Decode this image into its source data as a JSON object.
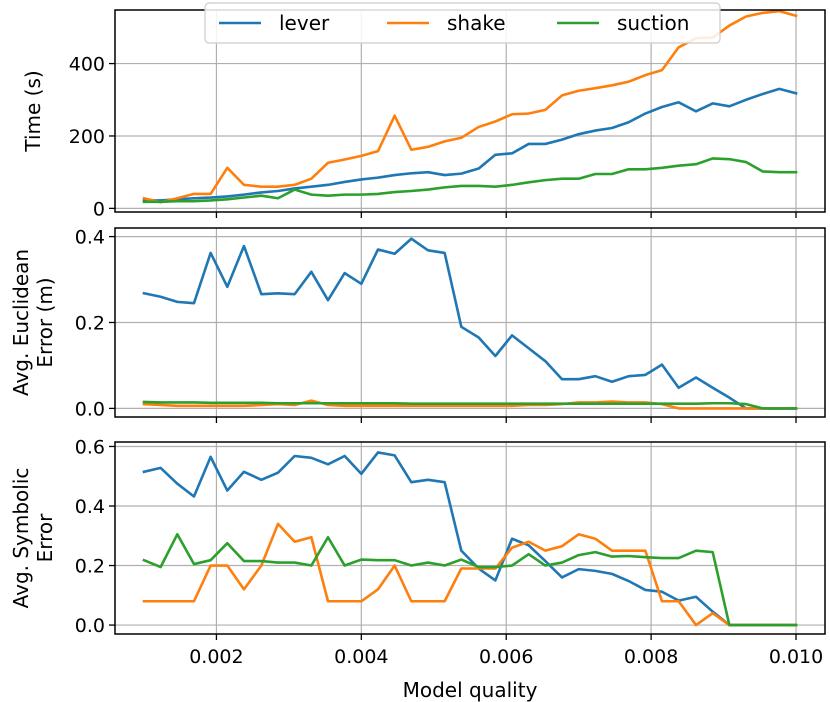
{
  "chart_data": {
    "type": "line",
    "xlabel": "Model quality",
    "x": [
      0.001,
      0.00123,
      0.00146,
      0.00169,
      0.00192,
      0.00215,
      0.00238,
      0.00262,
      0.00285,
      0.00308,
      0.00331,
      0.00354,
      0.00377,
      0.004,
      0.00423,
      0.00446,
      0.00469,
      0.00492,
      0.00515,
      0.00538,
      0.00562,
      0.00585,
      0.00608,
      0.00631,
      0.00654,
      0.00677,
      0.007,
      0.00723,
      0.00746,
      0.00769,
      0.00792,
      0.00815,
      0.00838,
      0.00862,
      0.00885,
      0.00908,
      0.00931,
      0.00954,
      0.00977,
      0.01
    ],
    "xlim": [
      0.0006,
      0.0104
    ],
    "xticks": [
      0.002,
      0.004,
      0.006,
      0.008,
      0.01
    ],
    "xtick_labels": [
      "0.002",
      "0.004",
      "0.006",
      "0.008",
      "0.010"
    ],
    "legend": {
      "placement": "upper center",
      "entries": [
        {
          "label": "lever",
          "color": "#1f77b4"
        },
        {
          "label": "shake",
          "color": "#ff7f0e"
        },
        {
          "label": "suction",
          "color": "#2ca02c"
        }
      ]
    },
    "grid": true,
    "subplots": [
      {
        "ylabel": "Time (s)",
        "ylim": [
          -10,
          548
        ],
        "yticks": [
          0,
          200,
          400
        ],
        "ytick_labels": [
          "0",
          "200",
          "400"
        ],
        "series": [
          {
            "name": "lever",
            "color": "#1f77b4",
            "values": [
              22,
              22,
              25,
              28,
              30,
              33,
              38,
              44,
              48,
              55,
              60,
              65,
              73,
              80,
              85,
              92,
              97,
              100,
              92,
              96,
              110,
              148,
              152,
              178,
              178,
              190,
              205,
              215,
              222,
              238,
              262,
              280,
              293,
              268,
              290,
              282,
              300,
              316,
              330,
              318
            ]
          },
          {
            "name": "shake",
            "color": "#ff7f0e",
            "values": [
              28,
              17,
              28,
              40,
              40,
              112,
              65,
              60,
              60,
              65,
              82,
              126,
              135,
              145,
              158,
              256,
              162,
              170,
              185,
              195,
              225,
              240,
              260,
              262,
              272,
              312,
              325,
              332,
              340,
              350,
              368,
              382,
              445,
              470,
              472,
              505,
              530,
              540,
              545,
              532
            ]
          },
          {
            "name": "suction",
            "color": "#2ca02c",
            "values": [
              18,
              18,
              20,
              20,
              22,
              25,
              30,
              35,
              28,
              52,
              38,
              35,
              38,
              38,
              40,
              45,
              48,
              52,
              58,
              62,
              62,
              60,
              65,
              72,
              78,
              82,
              82,
              95,
              95,
              108,
              108,
              112,
              118,
              122,
              138,
              136,
              128,
              102,
              100,
              100
            ]
          }
        ]
      },
      {
        "ylabel": "Avg. Euclidean\nError (m)",
        "ylim": [
          -0.02,
          0.42
        ],
        "yticks": [
          0.0,
          0.2,
          0.4
        ],
        "ytick_labels": [
          "0.0",
          "0.2",
          "0.4"
        ],
        "series": [
          {
            "name": "lever",
            "color": "#1f77b4",
            "values": [
              0.268,
              0.26,
              0.248,
              0.245,
              0.362,
              0.283,
              0.378,
              0.266,
              0.268,
              0.266,
              0.318,
              0.252,
              0.315,
              0.29,
              0.37,
              0.36,
              0.395,
              0.368,
              0.362,
              0.19,
              0.165,
              0.122,
              0.17,
              0.14,
              0.11,
              0.068,
              0.068,
              0.075,
              0.062,
              0.075,
              0.078,
              0.102,
              0.048,
              0.072,
              0.048,
              0.025,
              0.0,
              0.0,
              0.0,
              0.0
            ]
          },
          {
            "name": "shake",
            "color": "#ff7f0e",
            "values": [
              0.01,
              0.008,
              0.006,
              0.006,
              0.006,
              0.006,
              0.006,
              0.008,
              0.01,
              0.008,
              0.018,
              0.008,
              0.006,
              0.006,
              0.006,
              0.006,
              0.006,
              0.006,
              0.006,
              0.006,
              0.006,
              0.006,
              0.006,
              0.008,
              0.008,
              0.01,
              0.014,
              0.014,
              0.016,
              0.014,
              0.014,
              0.01,
              0.0,
              0.0,
              0.0,
              0.0,
              0.0,
              0.0,
              0.0,
              0.0
            ]
          },
          {
            "name": "suction",
            "color": "#2ca02c",
            "values": [
              0.015,
              0.014,
              0.014,
              0.014,
              0.013,
              0.013,
              0.013,
              0.013,
              0.012,
              0.012,
              0.012,
              0.012,
              0.012,
              0.012,
              0.012,
              0.012,
              0.011,
              0.011,
              0.011,
              0.011,
              0.011,
              0.011,
              0.011,
              0.011,
              0.011,
              0.011,
              0.011,
              0.011,
              0.011,
              0.011,
              0.011,
              0.011,
              0.011,
              0.011,
              0.012,
              0.012,
              0.01,
              0.0,
              0.0,
              0.0
            ]
          }
        ]
      },
      {
        "ylabel": "Avg. Symbolic\nError",
        "ylim": [
          -0.03,
          0.615
        ],
        "yticks": [
          0.0,
          0.2,
          0.4,
          0.6
        ],
        "ytick_labels": [
          "0.0",
          "0.2",
          "0.4",
          "0.6"
        ],
        "series": [
          {
            "name": "lever",
            "color": "#1f77b4",
            "values": [
              0.515,
              0.528,
              0.475,
              0.432,
              0.565,
              0.452,
              0.515,
              0.488,
              0.512,
              0.568,
              0.562,
              0.54,
              0.568,
              0.508,
              0.58,
              0.57,
              0.48,
              0.488,
              0.48,
              0.25,
              0.19,
              0.15,
              0.29,
              0.268,
              0.215,
              0.16,
              0.188,
              0.182,
              0.172,
              0.148,
              0.118,
              0.112,
              0.082,
              0.095,
              0.045,
              0.0,
              0.0,
              0.0,
              0.0,
              0.0
            ]
          },
          {
            "name": "shake",
            "color": "#ff7f0e",
            "values": [
              0.08,
              0.08,
              0.08,
              0.08,
              0.2,
              0.2,
              0.12,
              0.2,
              0.34,
              0.28,
              0.295,
              0.08,
              0.08,
              0.08,
              0.12,
              0.2,
              0.08,
              0.08,
              0.08,
              0.19,
              0.19,
              0.19,
              0.26,
              0.28,
              0.25,
              0.265,
              0.305,
              0.29,
              0.25,
              0.25,
              0.25,
              0.08,
              0.08,
              0.0,
              0.04,
              0.0,
              0.0,
              0.0,
              0.0,
              0.0
            ]
          },
          {
            "name": "suction",
            "color": "#2ca02c",
            "values": [
              0.218,
              0.195,
              0.305,
              0.205,
              0.218,
              0.275,
              0.215,
              0.215,
              0.21,
              0.21,
              0.2,
              0.295,
              0.2,
              0.22,
              0.218,
              0.218,
              0.2,
              0.21,
              0.2,
              0.22,
              0.195,
              0.195,
              0.2,
              0.238,
              0.2,
              0.21,
              0.235,
              0.245,
              0.23,
              0.232,
              0.228,
              0.225,
              0.225,
              0.25,
              0.245,
              0.0,
              0.0,
              0.0,
              0.0,
              0.0
            ]
          }
        ]
      }
    ]
  }
}
